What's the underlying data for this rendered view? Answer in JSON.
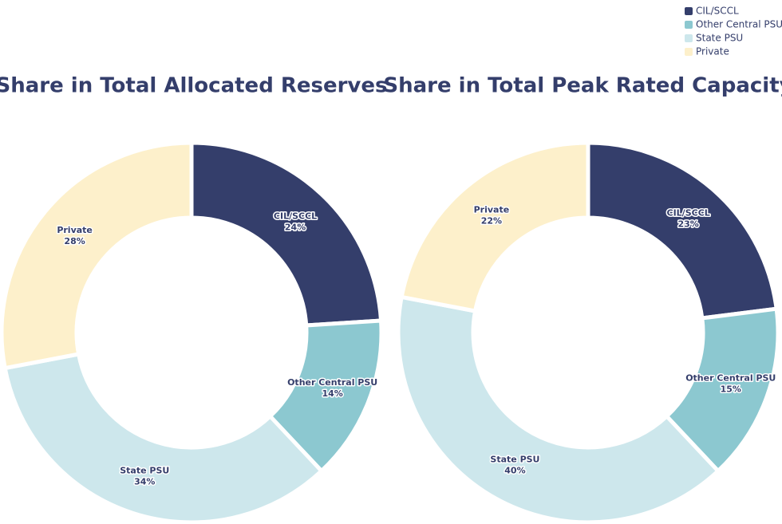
{
  "legend": {
    "names": [
      "CIL/SCCL",
      "Other Central PSU",
      "State PSU",
      "Private"
    ],
    "colors": [
      "#343e6b",
      "#8cc8d0",
      "#cde7ec",
      "#fdf0cb"
    ]
  },
  "chart_data": [
    {
      "type": "pie",
      "donut": true,
      "title": "Share in Total Allocated Reserves",
      "categories": [
        "CIL/SCCL",
        "Other Central PSU",
        "State PSU",
        "Private"
      ],
      "values": [
        24,
        14,
        34,
        28
      ],
      "value_labels": [
        "24%",
        "14%",
        "34%",
        "28%"
      ],
      "colors": [
        "#343e6b",
        "#8cc8d0",
        "#cde7ec",
        "#fdf0cb"
      ]
    },
    {
      "type": "pie",
      "donut": true,
      "title": "Share in Total Peak Rated Capacity",
      "categories": [
        "CIL/SCCL",
        "Other Central PSU",
        "State PSU",
        "Private"
      ],
      "values": [
        23,
        15,
        40,
        22
      ],
      "value_labels": [
        "23%",
        "15%",
        "40%",
        "22%"
      ],
      "colors": [
        "#343e6b",
        "#8cc8d0",
        "#cde7ec",
        "#fdf0cb"
      ]
    }
  ]
}
